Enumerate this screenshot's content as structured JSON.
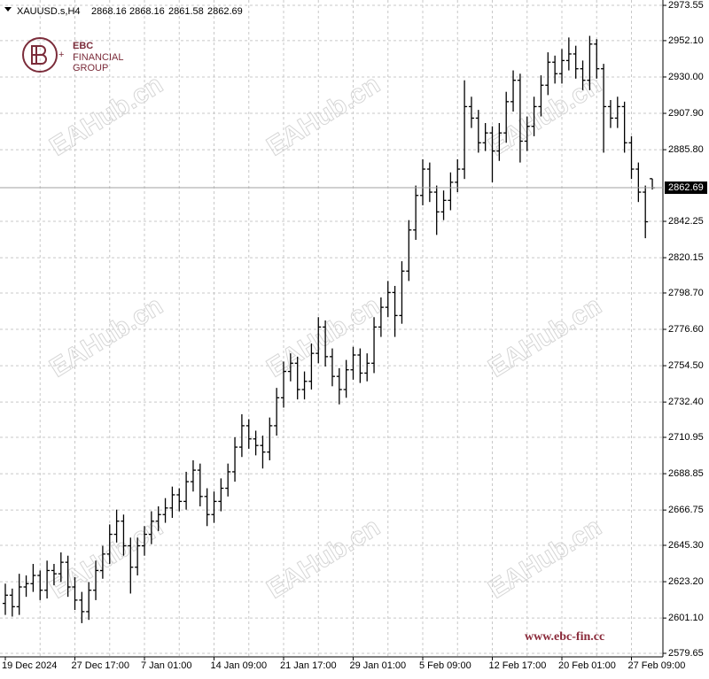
{
  "chart_data": {
    "type": "ohlc",
    "symbol": "XAUUSD.s,H4",
    "logo": [
      "EBC",
      "FINANCIAL",
      "GROUP"
    ],
    "website": "www.ebc-fin.cc",
    "watermark": "EAHub.cn",
    "color": "#000000",
    "grid": true,
    "ylim": [
      2577.5,
      2976.8
    ],
    "yticks": [
      {
        "value": 2973.55,
        "label": "2973.55"
      },
      {
        "value": 2952.1,
        "label": "2952.10"
      },
      {
        "value": 2930,
        "label": "2930.00"
      },
      {
        "value": 2907.9,
        "label": "2907.90"
      },
      {
        "value": 2885.8,
        "label": "2885.80"
      },
      {
        "value": 2842.25,
        "label": "2842.25"
      },
      {
        "value": 2820.15,
        "label": "2820.15"
      },
      {
        "value": 2798.7,
        "label": "2798.70"
      },
      {
        "value": 2776.6,
        "label": "2776.60"
      },
      {
        "value": 2754.5,
        "label": "2754.50"
      },
      {
        "value": 2732.4,
        "label": "2732.40"
      },
      {
        "value": 2710.95,
        "label": "2710.95"
      },
      {
        "value": 2688.85,
        "label": "2688.85"
      },
      {
        "value": 2666.75,
        "label": "2666.75"
      },
      {
        "value": 2645.3,
        "label": "2645.30"
      },
      {
        "value": 2623.2,
        "label": "2623.20"
      },
      {
        "value": 2601.1,
        "label": "2601.10"
      },
      {
        "value": 2579.65,
        "label": "2579.65"
      }
    ],
    "categories": [
      "19 Dec 2024",
      null,
      null,
      null,
      null,
      null,
      null,
      null,
      null,
      null,
      "27 Dec 17:00",
      null,
      null,
      null,
      null,
      null,
      null,
      null,
      null,
      null,
      "7 Jan 01:00",
      null,
      null,
      null,
      null,
      null,
      null,
      null,
      null,
      null,
      "14 Jan 09:00",
      null,
      null,
      null,
      null,
      null,
      null,
      null,
      null,
      null,
      "21 Jan 17:00",
      null,
      null,
      null,
      null,
      null,
      null,
      null,
      null,
      null,
      "29 Jan 01:00",
      null,
      null,
      null,
      null,
      null,
      null,
      null,
      null,
      null,
      "5 Feb 09:00",
      null,
      null,
      null,
      null,
      null,
      null,
      null,
      null,
      null,
      "12 Feb 17:00",
      null,
      null,
      null,
      null,
      null,
      null,
      null,
      null,
      null,
      "20 Feb 01:00",
      null,
      null,
      null,
      null,
      null,
      null,
      null,
      null,
      null,
      "27 Feb 09:00",
      null,
      null,
      null
    ],
    "open": [
      2610,
      2615,
      2608,
      2620,
      2622,
      2627,
      2618,
      2630,
      2628,
      2635,
      2620,
      2612,
      2605,
      2618,
      2630,
      2640,
      2652,
      2660,
      2645,
      2632,
      2645,
      2652,
      2660,
      2664,
      2668,
      2676,
      2672,
      2684,
      2691,
      2675,
      2664,
      2672,
      2680,
      2690,
      2705,
      2718,
      2710,
      2706,
      2702,
      2718,
      2735,
      2751,
      2756,
      2740,
      2745,
      2762,
      2778,
      2760,
      2748,
      2740,
      2752,
      2761,
      2750,
      2756,
      2778,
      2790,
      2799,
      2785,
      2812,
      2837,
      2858,
      2874,
      2860,
      2848,
      2855,
      2866,
      2874,
      2912,
      2905,
      2890,
      2896,
      2885,
      2896,
      2915,
      2928,
      2891,
      2900,
      2912,
      2925,
      2939,
      2932,
      2940,
      2944,
      2935,
      2928,
      2950,
      2935,
      2912,
      2905,
      2912,
      2890,
      2874,
      2860,
      2868.16
    ],
    "high": [
      2622,
      2619,
      2628,
      2627,
      2634,
      2630,
      2636,
      2634,
      2641,
      2639,
      2626,
      2617,
      2623,
      2636,
      2645,
      2658,
      2667,
      2664,
      2650,
      2650,
      2657,
      2666,
      2669,
      2674,
      2681,
      2680,
      2690,
      2697,
      2695,
      2680,
      2678,
      2686,
      2695,
      2711,
      2725,
      2722,
      2715,
      2712,
      2723,
      2741,
      2757,
      2762,
      2760,
      2751,
      2768,
      2784,
      2782,
      2765,
      2753,
      2758,
      2766,
      2765,
      2762,
      2784,
      2796,
      2806,
      2803,
      2818,
      2843,
      2864,
      2880,
      2878,
      2864,
      2861,
      2872,
      2880,
      2928,
      2918,
      2910,
      2902,
      2900,
      2902,
      2921,
      2934,
      2932,
      2906,
      2918,
      2931,
      2945,
      2943,
      2947,
      2954,
      2949,
      2940,
      2955,
      2953,
      2938,
      2916,
      2918,
      2915,
      2894,
      2878,
      2864,
      2868.16
    ],
    "low": [
      2603,
      2602,
      2603,
      2614,
      2617,
      2612,
      2613,
      2621,
      2623,
      2614,
      2606,
      2598,
      2600,
      2612,
      2625,
      2634,
      2647,
      2639,
      2616,
      2627,
      2639,
      2646,
      2654,
      2659,
      2662,
      2666,
      2667,
      2678,
      2669,
      2657,
      2659,
      2666,
      2675,
      2684,
      2699,
      2704,
      2700,
      2692,
      2697,
      2712,
      2729,
      2745,
      2734,
      2734,
      2740,
      2756,
      2754,
      2742,
      2731,
      2735,
      2746,
      2744,
      2745,
      2750,
      2772,
      2784,
      2772,
      2780,
      2806,
      2831,
      2852,
      2854,
      2834,
      2843,
      2849,
      2860,
      2868,
      2899,
      2884,
      2885,
      2866,
      2879,
      2890,
      2909,
      2878,
      2885,
      2894,
      2906,
      2919,
      2926,
      2926,
      2934,
      2929,
      2922,
      2922,
      2929,
      2884,
      2899,
      2899,
      2884,
      2868,
      2854,
      2832,
      2861.58
    ],
    "close": [
      2615,
      2608,
      2620,
      2622,
      2627,
      2618,
      2630,
      2628,
      2635,
      2620,
      2612,
      2605,
      2618,
      2630,
      2640,
      2652,
      2660,
      2645,
      2632,
      2645,
      2652,
      2660,
      2664,
      2668,
      2676,
      2672,
      2684,
      2691,
      2675,
      2664,
      2672,
      2680,
      2690,
      2705,
      2718,
      2710,
      2706,
      2702,
      2718,
      2735,
      2751,
      2756,
      2740,
      2745,
      2762,
      2778,
      2760,
      2748,
      2740,
      2752,
      2761,
      2750,
      2756,
      2778,
      2790,
      2799,
      2785,
      2812,
      2837,
      2858,
      2874,
      2860,
      2848,
      2855,
      2866,
      2874,
      2912,
      2905,
      2890,
      2896,
      2885,
      2896,
      2915,
      2928,
      2891,
      2900,
      2912,
      2925,
      2939,
      2932,
      2940,
      2944,
      2935,
      2928,
      2950,
      2935,
      2912,
      2905,
      2912,
      2890,
      2874,
      2860,
      2842,
      2862.69
    ]
  }
}
